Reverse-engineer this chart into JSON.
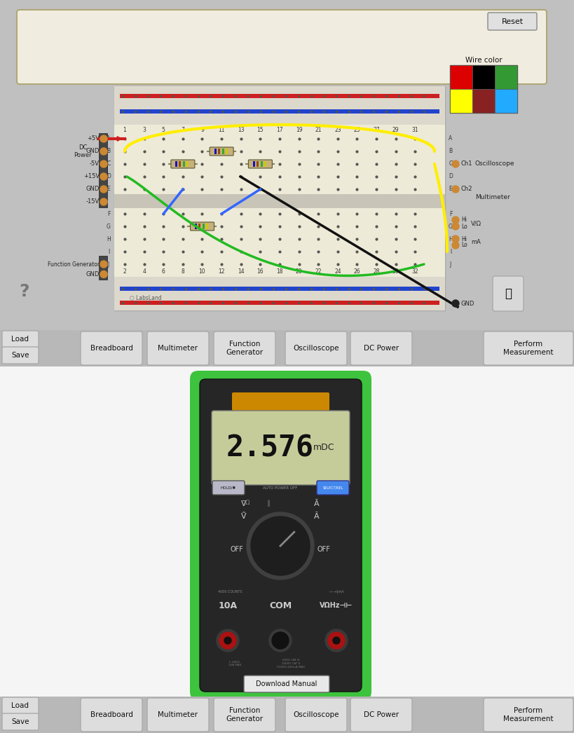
{
  "fig_width": 8.2,
  "fig_height": 10.46,
  "bg_color": "#c0c0c0",
  "top_panel_bg": "#c0c0c0",
  "bottom_panel_bg": "#f0f0f0",
  "toolbar_bg": "#b8b8b8",
  "text_box_bg": "#f0ede0",
  "text_box_border": "#b0a878",
  "breadboard_bg": "#f0ece4",
  "breadboard_photo_bg": "#e8e0d0",
  "reset_btn": "Reset",
  "wire_colors": [
    [
      "#dd0000",
      "#000000",
      "#339933"
    ],
    [
      "#ffff00",
      "#882222",
      "#22aaff"
    ]
  ],
  "multimeter_display": "2.576",
  "multimeter_unit": "mDC",
  "mm_body_color": "#282828",
  "mm_screen_color": "#c5cc9a",
  "mm_border_color": "#20bb20",
  "mm_orange": "#cc8800",
  "btn_labels": [
    "Breadboard",
    "Multimeter",
    "Function\nGenerator",
    "Oscilloscope",
    "DC Power"
  ],
  "left_labels": [
    "Load",
    "Save"
  ],
  "right_btn": "Perform\nMeasurement"
}
